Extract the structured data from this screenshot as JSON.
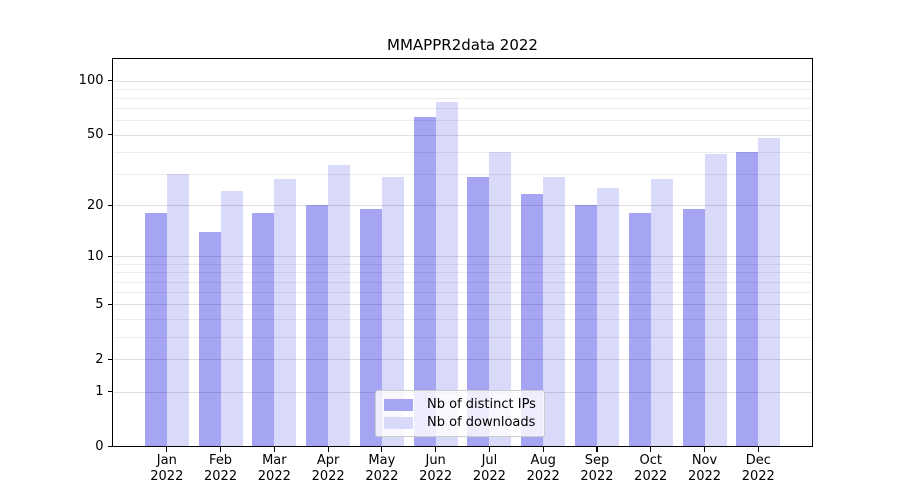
{
  "title": "MMAPPR2data 2022",
  "chart_data": {
    "type": "bar",
    "title": "MMAPPR2data 2022",
    "months": [
      "Jan",
      "Feb",
      "Mar",
      "Apr",
      "May",
      "Jun",
      "Jul",
      "Aug",
      "Sep",
      "Oct",
      "Nov",
      "Dec"
    ],
    "year": "2022",
    "series": [
      {
        "name": "Nb of distinct IPs",
        "color": "#a5a5f4",
        "values": [
          18,
          14,
          18,
          20,
          19,
          63,
          29,
          23,
          20,
          18,
          19,
          40
        ]
      },
      {
        "name": "Nb of downloads",
        "color": "#d9d9f9",
        "values": [
          30,
          24,
          28,
          34,
          29,
          76,
          40,
          29,
          25,
          28,
          39,
          48
        ]
      }
    ],
    "yscale": "log1p",
    "ylim": [
      0,
      100
    ],
    "y_tick_values": [
      0,
      1,
      2,
      5,
      10,
      20,
      50,
      100
    ],
    "y_tick_labels": [
      "0",
      "1",
      "2",
      "5",
      "10",
      "20",
      "50",
      "100"
    ],
    "y_minor_gridlines": [
      3,
      4,
      6,
      7,
      8,
      9,
      30,
      40,
      60,
      70,
      80,
      90
    ],
    "grid": true,
    "legend_position": "lower center"
  },
  "legend": {
    "items": [
      "Nb of distinct IPs",
      "Nb of downloads"
    ]
  }
}
